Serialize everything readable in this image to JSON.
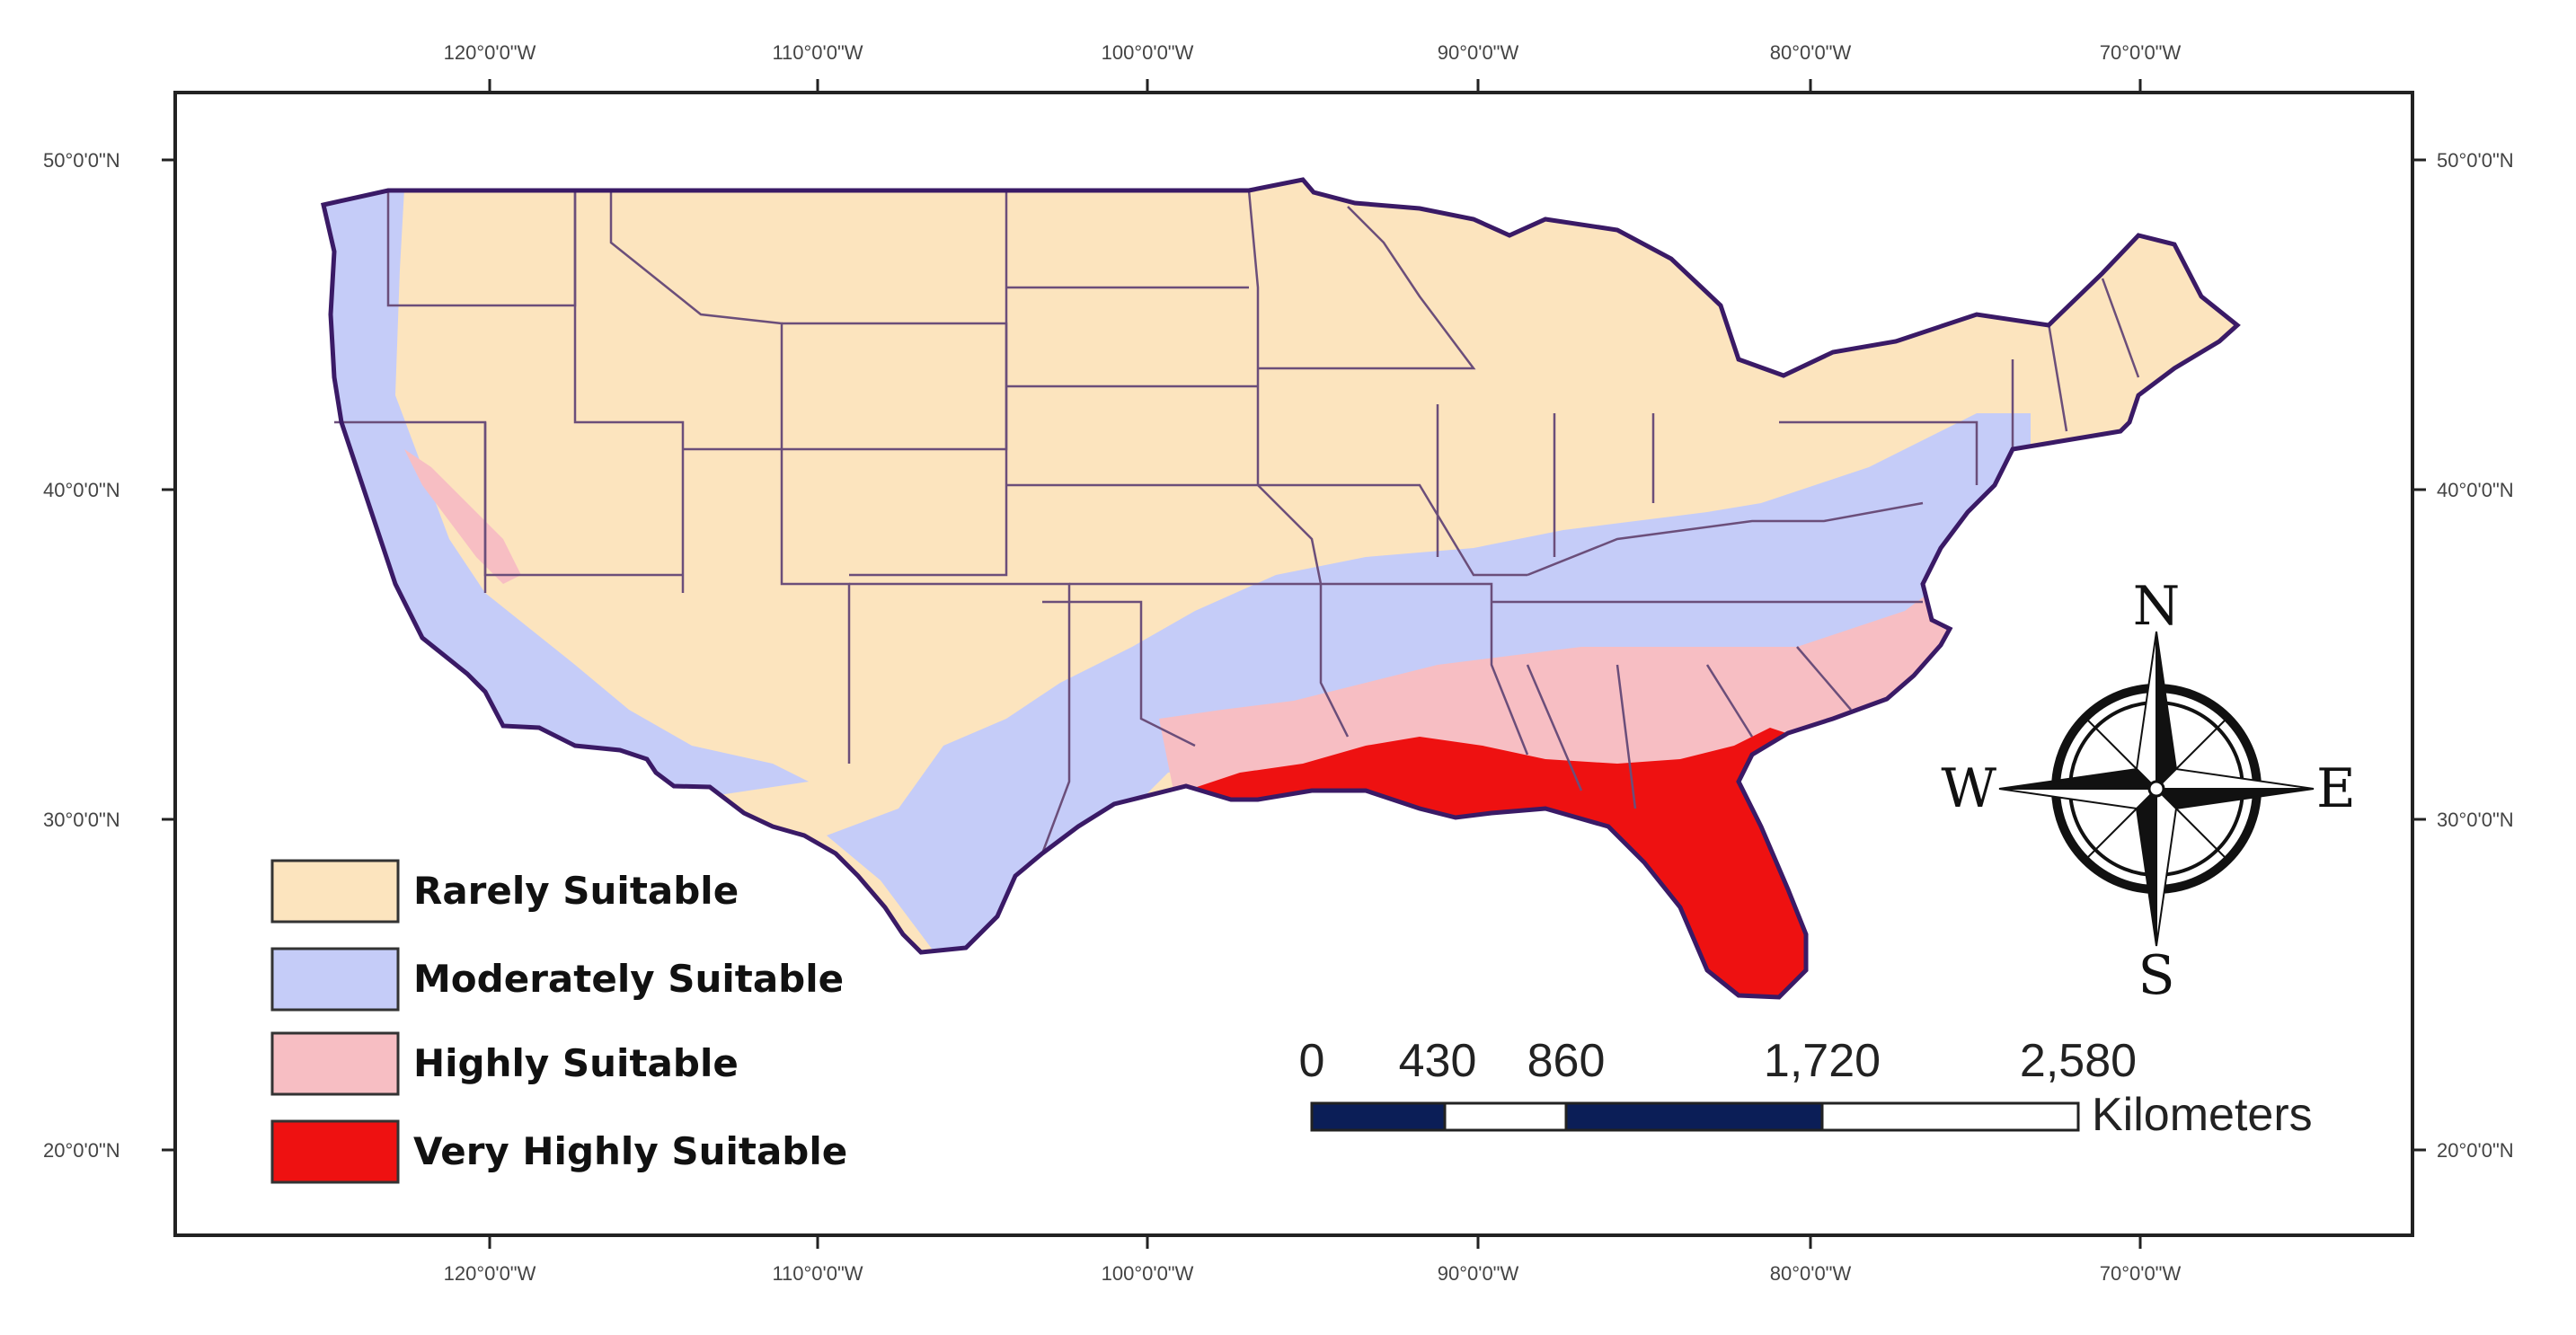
{
  "colors": {
    "rarely": "#FCE4BE",
    "moderately": "#C5CCF8",
    "highly": "#F7BEC3",
    "very_highly": "#EE1111",
    "state_border": "#6B4E7A",
    "coast": "#3A1A66",
    "scale_dark": "#0B1E57"
  },
  "axes": {
    "top": [
      "120°0'0\"W",
      "110°0'0\"W",
      "100°0'0\"W",
      "90°0'0\"W",
      "80°0'0\"W",
      "70°0'0\"W"
    ],
    "bottom": [
      "120°0'0\"W",
      "110°0'0\"W",
      "100°0'0\"W",
      "90°0'0\"W",
      "80°0'0\"W",
      "70°0'0\"W"
    ],
    "left": [
      "50°0'0\"N",
      "40°0'0\"N",
      "30°0'0\"N",
      "20°0'0\"N"
    ],
    "right": [
      "50°0'0\"N",
      "40°0'0\"N",
      "30°0'0\"N",
      "20°0'0\"N"
    ]
  },
  "legend": [
    {
      "label": "Rarely Suitable",
      "color": "#FCE4BE"
    },
    {
      "label": "Moderately Suitable",
      "color": "#C5CCF8"
    },
    {
      "label": "Highly Suitable",
      "color": "#F7BEC3"
    },
    {
      "label": "Very Highly Suitable",
      "color": "#EE1111"
    }
  ],
  "scale_bar": {
    "labels": [
      "0",
      "430",
      "860",
      "1,720",
      "2,580"
    ],
    "unit": "Kilometers"
  },
  "compass": {
    "n": "N",
    "s": "S",
    "e": "E",
    "w": "W"
  }
}
